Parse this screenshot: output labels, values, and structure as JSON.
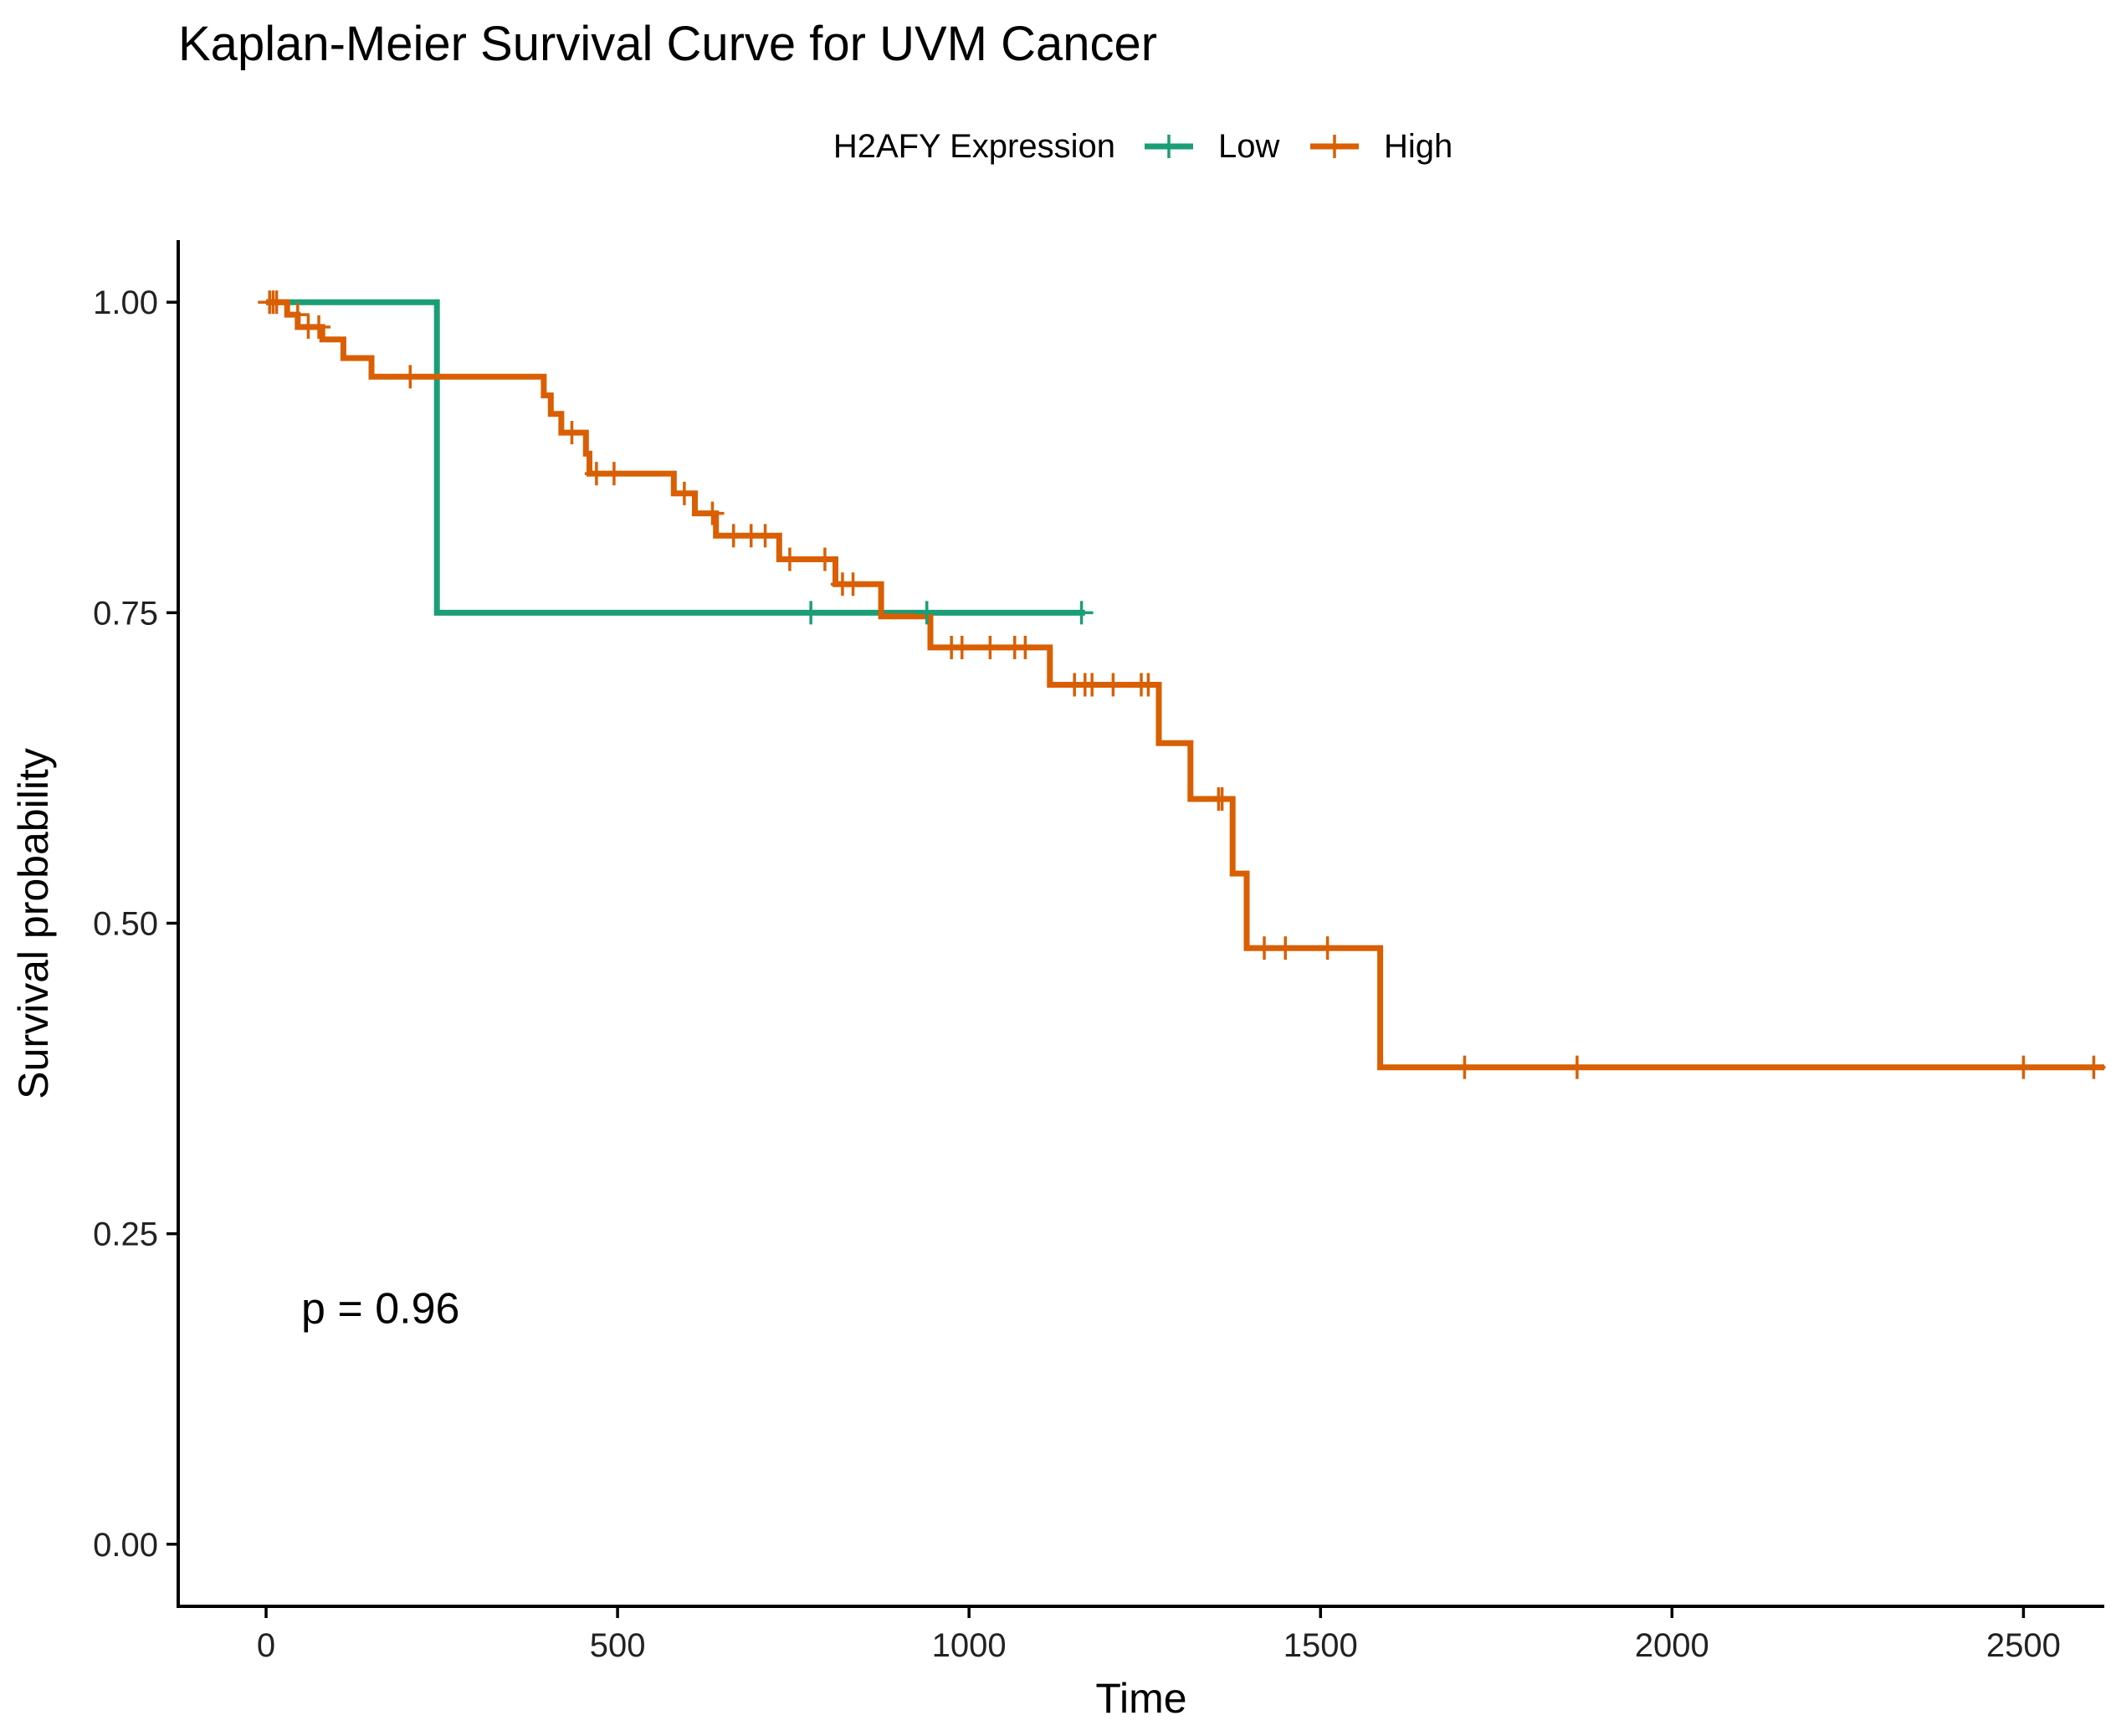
{
  "chart_data": {
    "type": "line",
    "subtype": "kaplan-meier-step",
    "title": "Kaplan-Meier Survival Curve for UVM Cancer",
    "xlabel": "Time",
    "ylabel": "Survival probability",
    "xlim": [
      -125,
      2615
    ],
    "ylim": [
      -0.05,
      1.05
    ],
    "xticks": [
      0,
      500,
      1000,
      1500,
      2000,
      2500
    ],
    "yticks": [
      0,
      0.25,
      0.5,
      0.75,
      1.0
    ],
    "ytick_labels": [
      "0.00",
      "0.25",
      "0.50",
      "0.75",
      "1.00"
    ],
    "grid": false,
    "legend": {
      "title": "H2AFY Expression",
      "position": "top"
    },
    "annotation": "p = 0.96",
    "annotation_at": {
      "x": 50,
      "y": 0.19
    },
    "series": [
      {
        "name": "Low",
        "color": "#1B9E77",
        "steps": [
          [
            0,
            1.0
          ],
          [
            243,
            0.75
          ],
          [
            1165,
            0.75
          ]
        ],
        "censors": [
          [
            775,
            0.75
          ],
          [
            940,
            0.75
          ],
          [
            1160,
            0.75
          ]
        ]
      },
      {
        "name": "High",
        "color": "#D95F02",
        "steps": [
          [
            0,
            1.0
          ],
          [
            30,
            0.99
          ],
          [
            45,
            0.98
          ],
          [
            80,
            0.97
          ],
          [
            110,
            0.955
          ],
          [
            150,
            0.94
          ],
          [
            395,
            0.925
          ],
          [
            405,
            0.91
          ],
          [
            420,
            0.895
          ],
          [
            455,
            0.878
          ],
          [
            460,
            0.862
          ],
          [
            580,
            0.846
          ],
          [
            610,
            0.83
          ],
          [
            640,
            0.812
          ],
          [
            730,
            0.793
          ],
          [
            810,
            0.773
          ],
          [
            875,
            0.747
          ],
          [
            945,
            0.722
          ],
          [
            1115,
            0.692
          ],
          [
            1270,
            0.645
          ],
          [
            1315,
            0.6
          ],
          [
            1375,
            0.54
          ],
          [
            1395,
            0.48
          ],
          [
            1585,
            0.384
          ],
          [
            2615,
            0.384
          ]
        ],
        "censors": [
          [
            5,
            1.0
          ],
          [
            10,
            1.0
          ],
          [
            15,
            1.0
          ],
          [
            45,
            0.99
          ],
          [
            60,
            0.98
          ],
          [
            75,
            0.98
          ],
          [
            205,
            0.94
          ],
          [
            435,
            0.895
          ],
          [
            470,
            0.862
          ],
          [
            495,
            0.862
          ],
          [
            595,
            0.846
          ],
          [
            635,
            0.83
          ],
          [
            665,
            0.812
          ],
          [
            690,
            0.812
          ],
          [
            710,
            0.812
          ],
          [
            745,
            0.793
          ],
          [
            795,
            0.793
          ],
          [
            820,
            0.773
          ],
          [
            835,
            0.773
          ],
          [
            975,
            0.722
          ],
          [
            990,
            0.722
          ],
          [
            1030,
            0.722
          ],
          [
            1065,
            0.722
          ],
          [
            1080,
            0.722
          ],
          [
            1150,
            0.692
          ],
          [
            1165,
            0.692
          ],
          [
            1175,
            0.692
          ],
          [
            1205,
            0.692
          ],
          [
            1245,
            0.692
          ],
          [
            1255,
            0.692
          ],
          [
            1355,
            0.6
          ],
          [
            1360,
            0.6
          ],
          [
            1420,
            0.48
          ],
          [
            1450,
            0.48
          ],
          [
            1510,
            0.48
          ],
          [
            1705,
            0.384
          ],
          [
            1865,
            0.384
          ],
          [
            2500,
            0.384
          ],
          [
            2600,
            0.384
          ]
        ]
      }
    ]
  }
}
